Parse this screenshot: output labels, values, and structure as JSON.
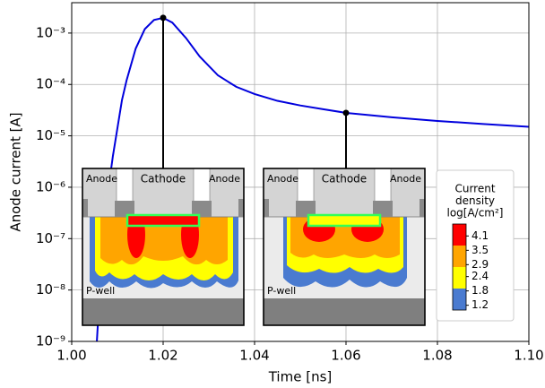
{
  "chart_data": {
    "type": "line",
    "xlabel": "Time [ns]",
    "ylabel": "Anode current [A]",
    "log_y": true,
    "grid": true,
    "x": [
      1.0055,
      1.007,
      1.009,
      1.011,
      1.012,
      1.014,
      1.016,
      1.018,
      1.02,
      1.022,
      1.025,
      1.028,
      1.032,
      1.036,
      1.04,
      1.045,
      1.05,
      1.055,
      1.06,
      1.07,
      1.08,
      1.09,
      1.1
    ],
    "series": [
      {
        "color": "#0000dd",
        "values": [
          1e-09,
          2e-07,
          4e-06,
          5e-05,
          0.00012,
          0.0005,
          0.0012,
          0.0018,
          0.00198,
          0.0016,
          0.0008,
          0.00035,
          0.00015,
          9e-05,
          6.5e-05,
          4.8e-05,
          3.9e-05,
          3.3e-05,
          2.8e-05,
          2.3e-05,
          1.95e-05,
          1.7e-05,
          1.5e-05
        ]
      }
    ],
    "xlim": [
      1.0,
      1.1
    ],
    "xticks": [
      {
        "value": 1.0,
        "label": "1.00"
      },
      {
        "value": 1.02,
        "label": "1.02"
      },
      {
        "value": 1.04,
        "label": "1.04"
      },
      {
        "value": 1.06,
        "label": "1.06"
      },
      {
        "value": 1.08,
        "label": "1.08"
      },
      {
        "value": 1.1,
        "label": "1.10"
      }
    ],
    "ylim": [
      1e-09,
      0.0039
    ],
    "yticks": [
      {
        "value": 1e-09,
        "label": "10⁻⁹"
      },
      {
        "value": 1e-08,
        "label": "10⁻⁸"
      },
      {
        "value": 1e-07,
        "label": "10⁻⁷"
      },
      {
        "value": 1e-06,
        "label": "10⁻⁶"
      },
      {
        "value": 1e-05,
        "label": "10⁻⁵"
      },
      {
        "value": 0.0001,
        "label": "10⁻⁴"
      },
      {
        "value": 0.001,
        "label": "10⁻³"
      }
    ],
    "markers": {
      "color": "#000000",
      "x": [
        1.02,
        1.06
      ],
      "values": [
        0.00198,
        2.8e-05
      ]
    },
    "insets": [
      {
        "texts": [
          "Anode",
          "Cathode",
          "Anode",
          "P-well"
        ]
      },
      {
        "texts": [
          "Anode",
          "Cathode",
          "Anode",
          "P-well"
        ]
      }
    ],
    "colorbar": {
      "title": [
        "Current",
        "density",
        "log[A/cm²]"
      ],
      "ticks": [
        4.1,
        3.5,
        2.9,
        2.4,
        1.8,
        1.2
      ],
      "lim": [
        1.0,
        4.6
      ],
      "colors": [
        "#ff0000",
        "#ffa500",
        "#ffff00",
        "#4a7bd0"
      ]
    }
  }
}
